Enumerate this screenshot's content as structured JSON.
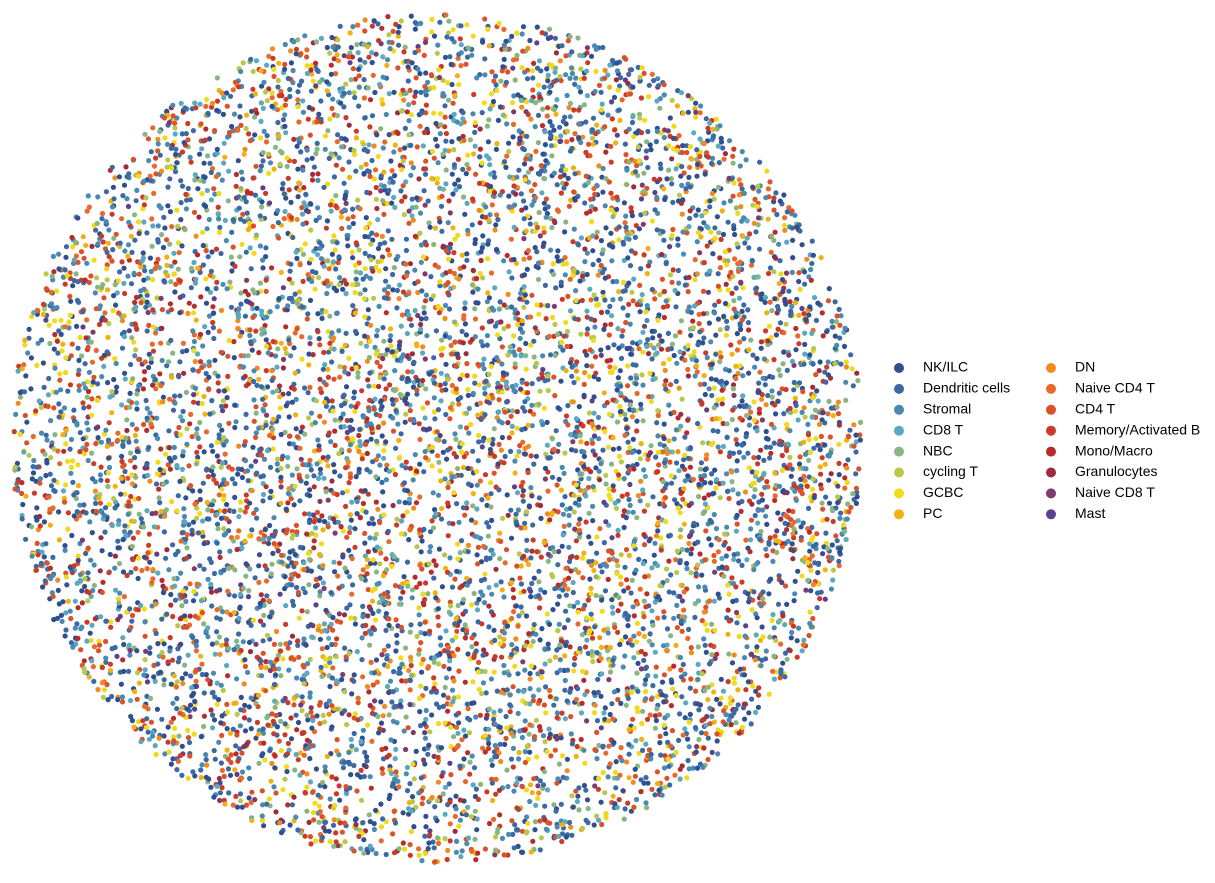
{
  "chart_data": {
    "type": "scatter",
    "legend": "right",
    "series": [
      {
        "name": "NK/ILC",
        "color": "#2f4f8f"
      },
      {
        "name": "Dendritic cells",
        "color": "#3b69a4"
      },
      {
        "name": "Stromal",
        "color": "#4a89b1"
      },
      {
        "name": "CD8 T",
        "color": "#5ba8c1"
      },
      {
        "name": "NBC",
        "color": "#89b680"
      },
      {
        "name": "cycling T",
        "color": "#b9c84b"
      },
      {
        "name": "GCBC",
        "color": "#f1d91b"
      },
      {
        "name": "PC",
        "color": "#f0b111"
      },
      {
        "name": "DN",
        "color": "#ef8b1f"
      },
      {
        "name": "Naive CD4 T",
        "color": "#e86a2a"
      },
      {
        "name": "CD4 T",
        "color": "#da512a"
      },
      {
        "name": "Memory/Activated B",
        "color": "#c93b27"
      },
      {
        "name": "Mono/Macro",
        "color": "#b62b2b"
      },
      {
        "name": "Granulocytes",
        "color": "#9b2b41"
      },
      {
        "name": "Naive CD8 T",
        "color": "#7f3b6b"
      },
      {
        "name": "Mast",
        "color": "#5b408b"
      }
    ]
  }
}
